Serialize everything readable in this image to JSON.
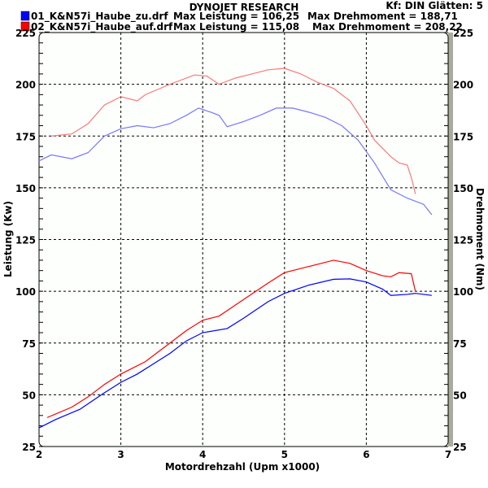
{
  "chart_data": {
    "type": "line",
    "title": "DYNOJET RESEARCH",
    "info": "Kf: DIN  Glätten: 5",
    "xlabel": "Motordrehzahl (Upm x1000)",
    "ylabel": "Leistung (Kw)",
    "y2label": "Drehmoment (Nm)",
    "xlim": [
      2,
      7
    ],
    "ylim": [
      25,
      225
    ],
    "xticks": [
      "2",
      "3",
      "4",
      "5",
      "6",
      "7"
    ],
    "yticks": [
      "25",
      "50",
      "75",
      "100",
      "125",
      "150",
      "175",
      "200",
      "225"
    ],
    "grid": true,
    "legend": [
      {
        "file": "01_K&N57i_Haube_zu.drf",
        "power_text": "Max Leistung = 106,25",
        "torque_text": "Max Drehmoment = 188,71",
        "color": "#0000ff"
      },
      {
        "file": "02_K&N57i_Haube_auf.drf",
        "power_text": "Max Leistung = 115,08",
        "torque_text": "Max Drehmoment = 208,22",
        "color": "#ff0000"
      }
    ],
    "series": [
      {
        "name": "01 Leistung",
        "color": "#0000ff",
        "x": [
          2.0,
          2.2,
          2.5,
          2.8,
          3.0,
          3.2,
          3.4,
          3.6,
          3.8,
          4.0,
          4.3,
          4.5,
          4.8,
          5.0,
          5.3,
          5.6,
          5.8,
          6.0,
          6.2,
          6.3,
          6.5,
          6.6,
          6.8
        ],
        "y": [
          34,
          38,
          43,
          51,
          56,
          60,
          65,
          70,
          76,
          80,
          82,
          87,
          95,
          99,
          103,
          105.8,
          106,
          104.5,
          101,
          98,
          98.5,
          99,
          98
        ]
      },
      {
        "name": "02 Leistung",
        "color": "#ff0000",
        "x": [
          2.1,
          2.4,
          2.6,
          2.8,
          3.0,
          3.3,
          3.5,
          3.8,
          4.0,
          4.2,
          4.5,
          4.8,
          5.0,
          5.3,
          5.6,
          5.8,
          6.0,
          6.2,
          6.3,
          6.4,
          6.55,
          6.6
        ],
        "y": [
          39,
          44,
          49,
          55,
          60,
          66,
          72,
          81,
          86,
          88,
          96,
          104,
          109,
          112,
          115,
          113.5,
          110,
          107.5,
          107,
          109,
          108.5,
          100
        ]
      },
      {
        "name": "01 Drehmoment",
        "color": "#7777ff",
        "x": [
          2.0,
          2.15,
          2.4,
          2.6,
          2.8,
          3.0,
          3.2,
          3.4,
          3.6,
          3.8,
          3.95,
          4.1,
          4.2,
          4.3,
          4.5,
          4.7,
          4.9,
          5.1,
          5.3,
          5.5,
          5.7,
          5.9,
          6.1,
          6.3,
          6.5,
          6.7,
          6.8
        ],
        "y": [
          163,
          165.9,
          164,
          167,
          175,
          178.5,
          180,
          179,
          181,
          185,
          188.5,
          186.5,
          185,
          179.5,
          182,
          185,
          188.5,
          188.5,
          186.5,
          184,
          180,
          173,
          162,
          149,
          145,
          142,
          137
        ]
      },
      {
        "name": "02 Drehmoment",
        "color": "#ff7777",
        "x": [
          2.15,
          2.4,
          2.6,
          2.8,
          3.0,
          3.2,
          3.3,
          3.6,
          3.9,
          4.05,
          4.2,
          4.4,
          4.6,
          4.8,
          5.0,
          5.2,
          5.4,
          5.6,
          5.8,
          6.0,
          6.1,
          6.3,
          6.4,
          6.5,
          6.55,
          6.6
        ],
        "y": [
          175,
          176,
          181,
          190,
          194,
          192,
          195,
          200,
          204.5,
          204,
          200,
          203,
          205,
          207,
          207.7,
          205,
          201,
          198,
          192,
          180,
          173,
          165,
          162,
          161,
          155,
          147
        ]
      }
    ]
  }
}
